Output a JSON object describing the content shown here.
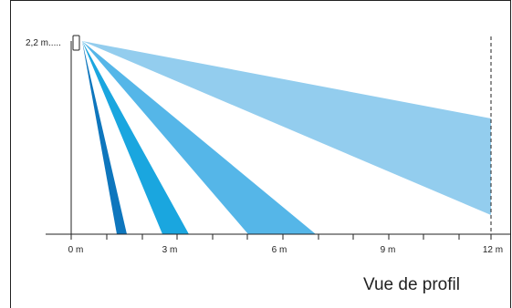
{
  "diagram": {
    "height_label": "2,2 m.....",
    "caption": "Vue de profil",
    "x_labels": [
      "0 m",
      "3 m",
      "6 m",
      "9 m",
      "12 m"
    ]
  },
  "colors": {
    "frame": "#222222",
    "beam_far": "#93cdee",
    "beam_3": "#55b6e8",
    "beam_2": "#1aa6df",
    "beam_1": "#0e76bd"
  }
}
